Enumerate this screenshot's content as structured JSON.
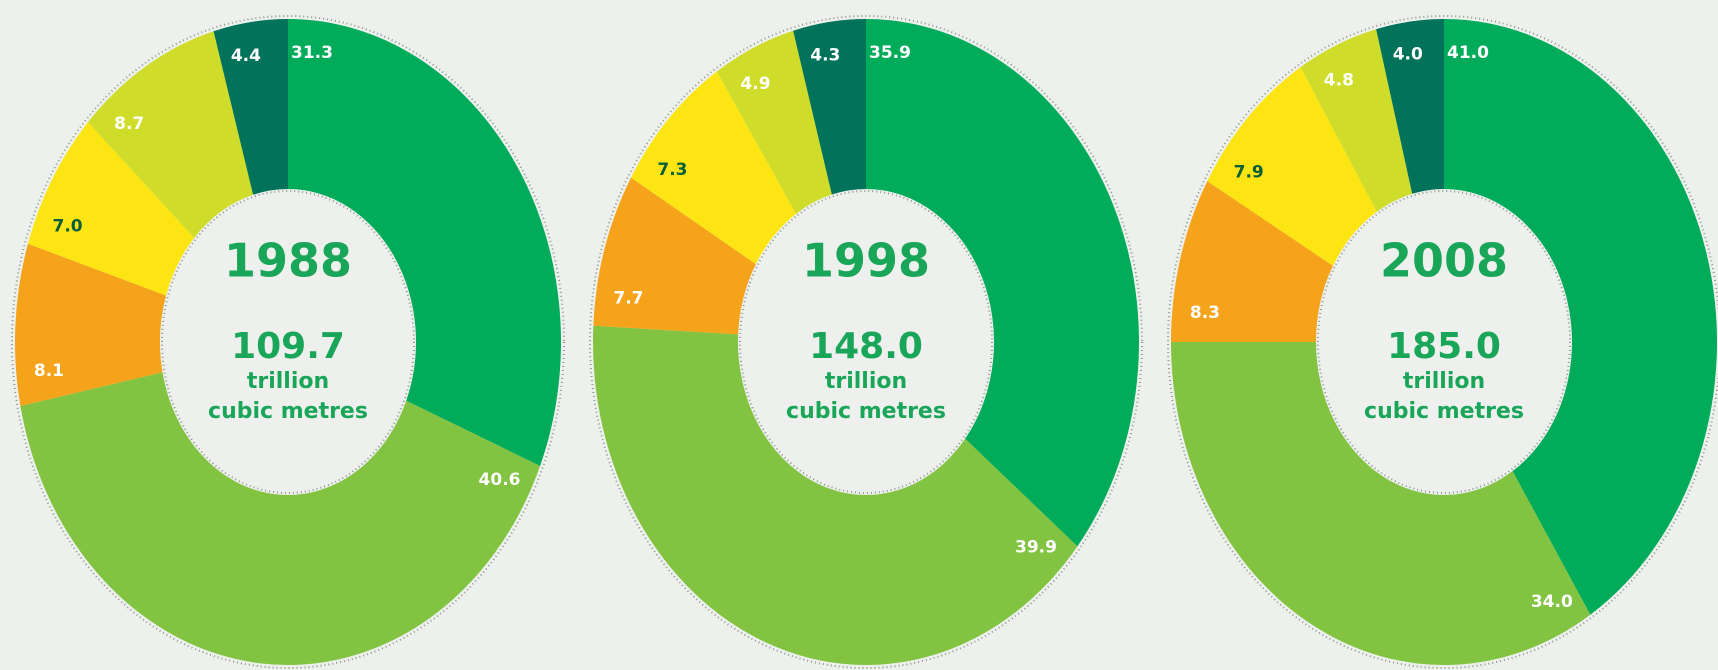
{
  "chart_data": [
    {
      "type": "donut",
      "title": "1988",
      "total": "109.7",
      "unit_lines": [
        "trillion",
        "cubic metres"
      ],
      "values": [
        31.3,
        40.6,
        8.1,
        7.0,
        8.7,
        4.4
      ],
      "value_labels": [
        "31.3",
        "40.6",
        "8.1",
        "7.0",
        "8.7",
        "4.4"
      ],
      "colors": [
        "#00ab5a",
        "#82c341",
        "#f6a31c",
        "#fde513",
        "#cfdd2a",
        "#00735a"
      ],
      "label_colors": [
        "#ffffff",
        "#ffffff",
        "#ffffff",
        "#0a5e3a",
        "#ffffff",
        "#ffffff"
      ]
    },
    {
      "type": "donut",
      "title": "1998",
      "total": "148.0",
      "unit_lines": [
        "trillion",
        "cubic metres"
      ],
      "values": [
        35.9,
        39.9,
        7.7,
        7.3,
        4.9,
        4.3
      ],
      "value_labels": [
        "35.9",
        "39.9",
        "7.7",
        "7.3",
        "4.9",
        "4.3"
      ],
      "colors": [
        "#00ab5a",
        "#82c341",
        "#f6a31c",
        "#fde513",
        "#cfdd2a",
        "#00735a"
      ],
      "label_colors": [
        "#ffffff",
        "#ffffff",
        "#ffffff",
        "#0a5e3a",
        "#ffffff",
        "#ffffff"
      ]
    },
    {
      "type": "donut",
      "title": "2008",
      "total": "185.0",
      "unit_lines": [
        "trillion",
        "cubic metres"
      ],
      "values": [
        41.0,
        34.0,
        8.3,
        7.9,
        4.8,
        4.0
      ],
      "value_labels": [
        "41.0",
        "34.0",
        "8.3",
        "7.9",
        "4.8",
        "4.0"
      ],
      "colors": [
        "#00ab5a",
        "#82c341",
        "#f6a31c",
        "#fde513",
        "#cfdd2a",
        "#00735a"
      ],
      "label_colors": [
        "#ffffff",
        "#ffffff",
        "#ffffff",
        "#0a5e3a",
        "#ffffff",
        "#ffffff"
      ]
    }
  ]
}
